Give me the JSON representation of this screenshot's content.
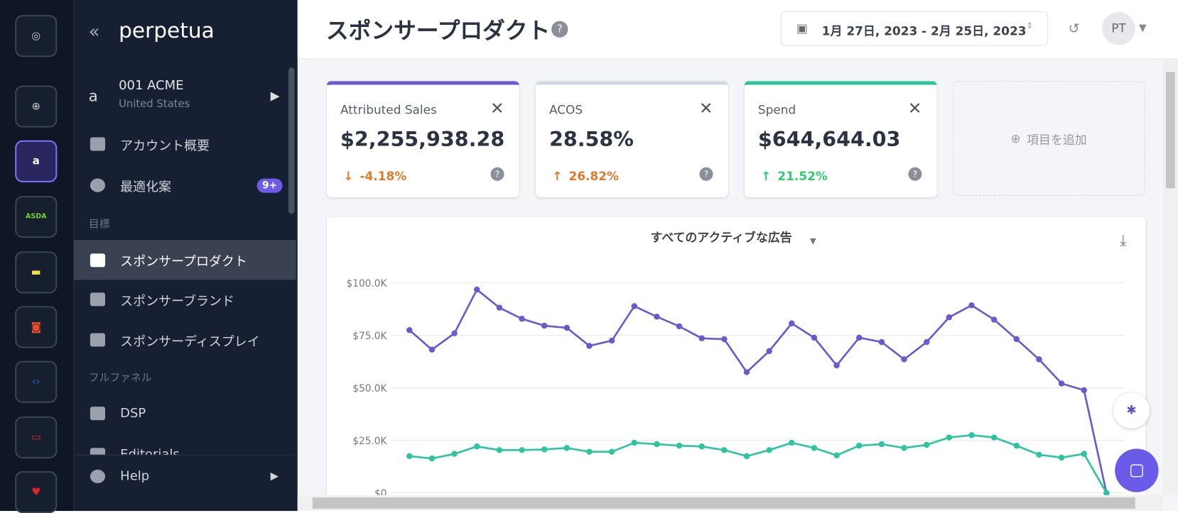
{
  "rail": {
    "asda": "ASDA"
  },
  "sidebar": {
    "brand": "perpetua",
    "account": {
      "name": "001 ACME",
      "country": "United States"
    },
    "nav": [
      {
        "label": "アカウント概要"
      },
      {
        "label": "最適化案",
        "badge": "9+"
      }
    ],
    "section_goals": "目標",
    "goals": [
      "スポンサープロダクト",
      "スポンサーブランド",
      "スポンサーディスプレイ"
    ],
    "section_funnel": "フルファネル",
    "funnel": [
      "DSP",
      "Editorials"
    ],
    "help": "Help"
  },
  "header": {
    "title": "スポンサープロダクト",
    "date_range": "1月 27日, 2023 - 2月 25日, 2023",
    "user": "PT"
  },
  "kpis": [
    {
      "label": "Attributed Sales",
      "value": "$2,255,938.28",
      "change": "-4.18%"
    },
    {
      "label": "ACOS",
      "value": "28.58%",
      "change": "26.82%"
    },
    {
      "label": "Spend",
      "value": "$644,644.03",
      "change": "21.52%"
    }
  ],
  "add_metric": "項目を追加",
  "chart_data": {
    "type": "line",
    "title": "すべてのアクティブな広告",
    "ylim": [
      0,
      100000
    ],
    "yticks": [
      {
        "value": 0,
        "label": "$0"
      },
      {
        "value": 25000,
        "label": "$25.0K"
      },
      {
        "value": 50000,
        "label": "$50.0K"
      },
      {
        "value": 75000,
        "label": "$75.0K"
      },
      {
        "value": 100000,
        "label": "$100.0K"
      }
    ],
    "grid": true,
    "series": [
      {
        "color": "#6a5acd",
        "values": [
          77500,
          68200,
          76000,
          96800,
          88200,
          82900,
          79600,
          78600,
          70000,
          72500,
          88900,
          83900,
          79300,
          73600,
          73200,
          57500,
          67500,
          80700,
          73900,
          60700,
          73900,
          71800,
          63600,
          71800,
          83600,
          89300,
          82500,
          73200,
          63600,
          52100,
          48900,
          0
        ]
      },
      {
        "color": "#2ec4a0",
        "values": [
          17500,
          16400,
          18600,
          22100,
          20400,
          20400,
          20700,
          21400,
          19600,
          19600,
          23900,
          23200,
          22500,
          22100,
          20400,
          17500,
          20400,
          23900,
          21400,
          17900,
          22500,
          23200,
          21400,
          22900,
          26400,
          27500,
          26400,
          22500,
          18200,
          16800,
          18600,
          0
        ]
      }
    ]
  }
}
